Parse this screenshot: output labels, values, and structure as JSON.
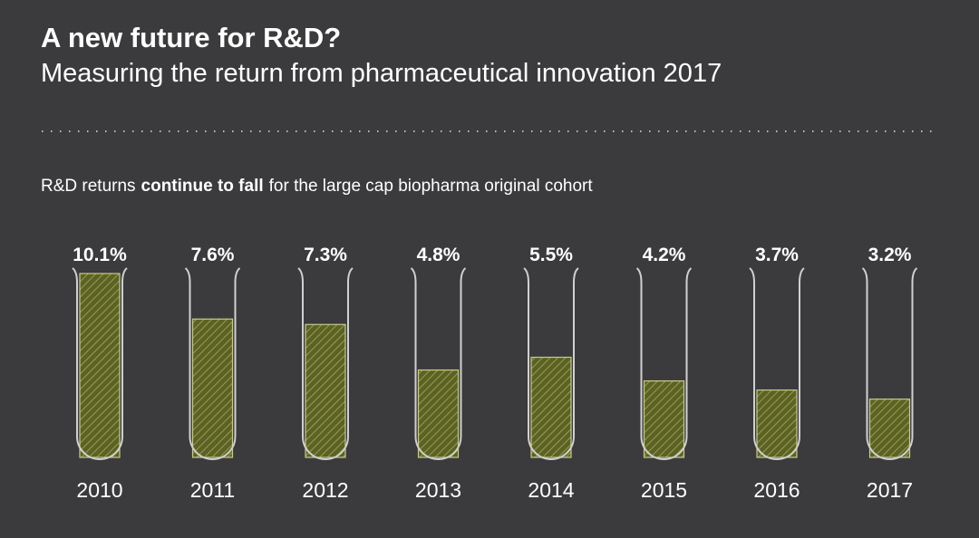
{
  "chart_data": {
    "type": "bar",
    "title": "A new future for R&D?",
    "subtitle": "Measuring the return from pharmaceutical innovation 2017",
    "annotation_parts": [
      "R&D returns",
      "continue to fall",
      "for the large cap biopharma original cohort"
    ],
    "categories": [
      "2010",
      "2011",
      "2012",
      "2013",
      "2014",
      "2015",
      "2016",
      "2017"
    ],
    "values": [
      10.1,
      7.6,
      7.3,
      4.8,
      5.5,
      4.2,
      3.7,
      3.2
    ],
    "value_labels": [
      "10.1%",
      "7.6%",
      "7.3%",
      "4.8%",
      "5.5%",
      "4.2%",
      "3.7%",
      "3.2%"
    ],
    "ylim": [
      0,
      10.1
    ],
    "color": "#5c6322"
  }
}
